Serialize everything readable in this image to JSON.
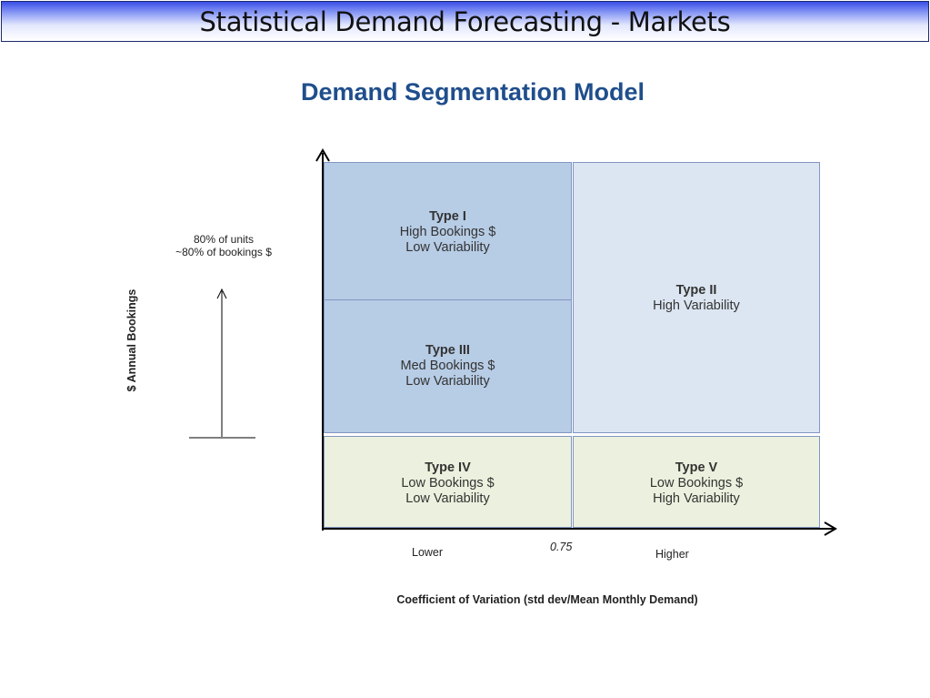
{
  "header": {
    "title": "Statistical Demand Forecasting - Markets"
  },
  "diagram": {
    "title": "Demand Segmentation Model",
    "y_axis_label": "$ Annual Bookings",
    "x_axis_label": "Coefficient of Variation (std dev/Mean Monthly Demand)",
    "x_low_label": "Lower",
    "x_high_label": "Higher",
    "x_threshold_label": "0.75",
    "note": {
      "line1": "80% of units",
      "line2": "~80% of bookings $"
    },
    "segments": [
      {
        "type": "Type I",
        "line1": "High Bookings $",
        "line2": "Low Variability"
      },
      {
        "type": "Type II",
        "line1": "High Variability"
      },
      {
        "type": "Type III",
        "line1": "Med Bookings $",
        "line2": "Low Variability"
      },
      {
        "type": "Type IV",
        "line1": "Low Bookings $",
        "line2": "Low Variability"
      },
      {
        "type": "Type V",
        "line1": "Low Bookings $",
        "line2": "High Variability"
      }
    ],
    "colors": {
      "title": "#1f4e8c",
      "high_bookings_low_variability": "#b7cce5",
      "high_variability": "#dce6f2",
      "low_bookings": "#ebf1de",
      "box_border": "#8196c2"
    }
  }
}
